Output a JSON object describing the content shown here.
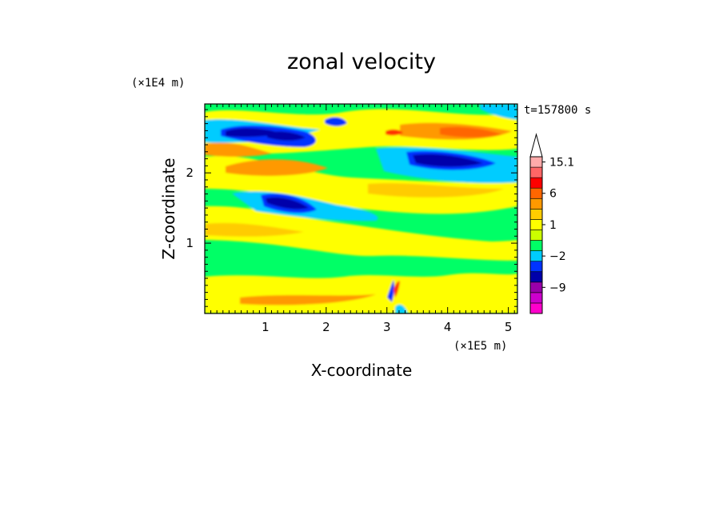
{
  "chart_data": {
    "type": "heatmap",
    "title": "zonal velocity",
    "xlabel": "X-coordinate",
    "ylabel": "Z-coordinate",
    "x_unit": "(×1E5 m)",
    "y_unit": "(×1E4 m)",
    "time_label": "t=157800 s",
    "xlim": [
      0,
      5.15
    ],
    "ylim": [
      0,
      2.98
    ],
    "x_ticks": [
      "1",
      "2",
      "3",
      "4",
      "5"
    ],
    "x_tick_values": [
      1,
      2,
      3,
      4,
      5
    ],
    "y_ticks": [
      "1",
      "2"
    ],
    "y_tick_values": [
      1,
      2
    ],
    "colorbar": {
      "levels": [
        -15,
        -12,
        -9,
        -6,
        -3,
        -2,
        -1,
        0,
        1,
        2,
        3,
        6,
        9,
        12,
        15.1
      ],
      "colors": [
        "#ff00cc",
        "#cc00cc",
        "#9900aa",
        "#0000aa",
        "#0033ff",
        "#00ccff",
        "#00ff66",
        "#ccff00",
        "#ffff00",
        "#ffcc00",
        "#ff9900",
        "#ff6600",
        "#ff0000",
        "#ff6666",
        "#ffaaaa",
        "#ffffff"
      ],
      "labels": [
        {
          "value": 15.1,
          "text": "15.1"
        },
        {
          "value": 6,
          "text": "6"
        },
        {
          "value": 1,
          "text": "1"
        },
        {
          "value": -2,
          "text": "−2"
        },
        {
          "value": -9,
          "text": "−9"
        }
      ]
    }
  }
}
